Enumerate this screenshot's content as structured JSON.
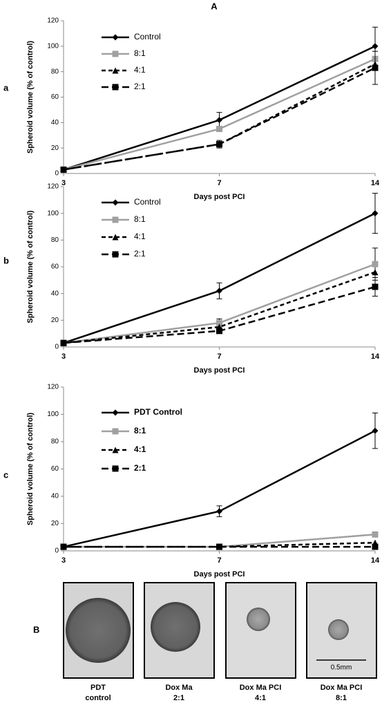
{
  "figure_title": "A",
  "chart_data": [
    {
      "type": "line",
      "panel": "a",
      "xlabel": "Days  post PCI",
      "ylabel": "Spheroid volume (% of control)",
      "categories": [
        "3",
        "7",
        "14"
      ],
      "ylim": [
        0,
        120
      ],
      "yticks": [
        0,
        20,
        40,
        60,
        80,
        100,
        120
      ],
      "legend_position": "upper left",
      "legend_bold": false,
      "series": [
        {
          "name": "Control",
          "color": "#000000",
          "dash": "solid",
          "marker": "diamond",
          "values": [
            3,
            42,
            100
          ],
          "errors": [
            null,
            6,
            15
          ]
        },
        {
          "name": "8:1",
          "color": "#a0a0a0",
          "dash": "solid",
          "marker": "square",
          "values": [
            3,
            35,
            90
          ],
          "errors": [
            null,
            null,
            null
          ]
        },
        {
          "name": "4:1",
          "color": "#000000",
          "dash": "dashed",
          "marker": "triangle",
          "values": [
            3,
            23,
            86
          ],
          "errors": [
            null,
            null,
            null
          ]
        },
        {
          "name": "2:1",
          "color": "#000000",
          "dash": "long-dashed",
          "marker": "square",
          "values": [
            3,
            23,
            83
          ],
          "errors": [
            null,
            3,
            13
          ]
        }
      ]
    },
    {
      "type": "line",
      "panel": "b",
      "xlabel": "Days  post PCI",
      "ylabel": "Spheroid volume (% of control)",
      "categories": [
        "3",
        "7",
        "14"
      ],
      "ylim": [
        0,
        120
      ],
      "yticks": [
        0,
        20,
        40,
        60,
        80,
        100,
        120
      ],
      "legend_position": "upper left",
      "legend_bold": false,
      "series": [
        {
          "name": "Control",
          "color": "#000000",
          "dash": "solid",
          "marker": "diamond",
          "values": [
            3,
            42,
            100
          ],
          "errors": [
            null,
            6,
            15
          ]
        },
        {
          "name": "8:1",
          "color": "#a0a0a0",
          "dash": "solid",
          "marker": "square",
          "values": [
            3,
            18,
            62
          ],
          "errors": [
            null,
            3,
            12
          ]
        },
        {
          "name": "4:1",
          "color": "#000000",
          "dash": "dashed",
          "marker": "triangle",
          "values": [
            3,
            15,
            56
          ],
          "errors": [
            null,
            null,
            null
          ]
        },
        {
          "name": "2:1",
          "color": "#000000",
          "dash": "long-dashed",
          "marker": "square",
          "values": [
            3,
            12,
            45
          ],
          "errors": [
            null,
            null,
            7
          ]
        }
      ]
    },
    {
      "type": "line",
      "panel": "c",
      "xlabel": "Days  post PCI",
      "ylabel": "Spheroid volume (% of control)",
      "categories": [
        "3",
        "7",
        "14"
      ],
      "ylim": [
        0,
        120
      ],
      "yticks": [
        0,
        20,
        40,
        60,
        80,
        100,
        120
      ],
      "legend_position": "upper left",
      "legend_bold": true,
      "series": [
        {
          "name": "PDT Control",
          "color": "#000000",
          "dash": "solid",
          "marker": "diamond",
          "values": [
            3,
            29,
            88
          ],
          "errors": [
            null,
            4,
            13
          ]
        },
        {
          "name": "8:1",
          "color": "#a0a0a0",
          "dash": "solid",
          "marker": "square",
          "values": [
            3,
            3,
            12
          ],
          "errors": [
            null,
            null,
            null
          ]
        },
        {
          "name": "4:1",
          "color": "#000000",
          "dash": "dashed",
          "marker": "triangle",
          "values": [
            3,
            3,
            6
          ],
          "errors": [
            null,
            null,
            null
          ]
        },
        {
          "name": "2:1",
          "color": "#000000",
          "dash": "long-dashed",
          "marker": "square",
          "values": [
            3,
            3,
            3
          ],
          "errors": [
            null,
            null,
            null
          ]
        }
      ]
    }
  ],
  "images": {
    "label": "B",
    "scale_bar": "0.5mm",
    "captions": [
      [
        "PDT",
        "control"
      ],
      [
        "Dox Ma",
        "2:1"
      ],
      [
        "Dox Ma PCI",
        "4:1"
      ],
      [
        "Dox Ma PCI",
        "8:1"
      ]
    ]
  }
}
